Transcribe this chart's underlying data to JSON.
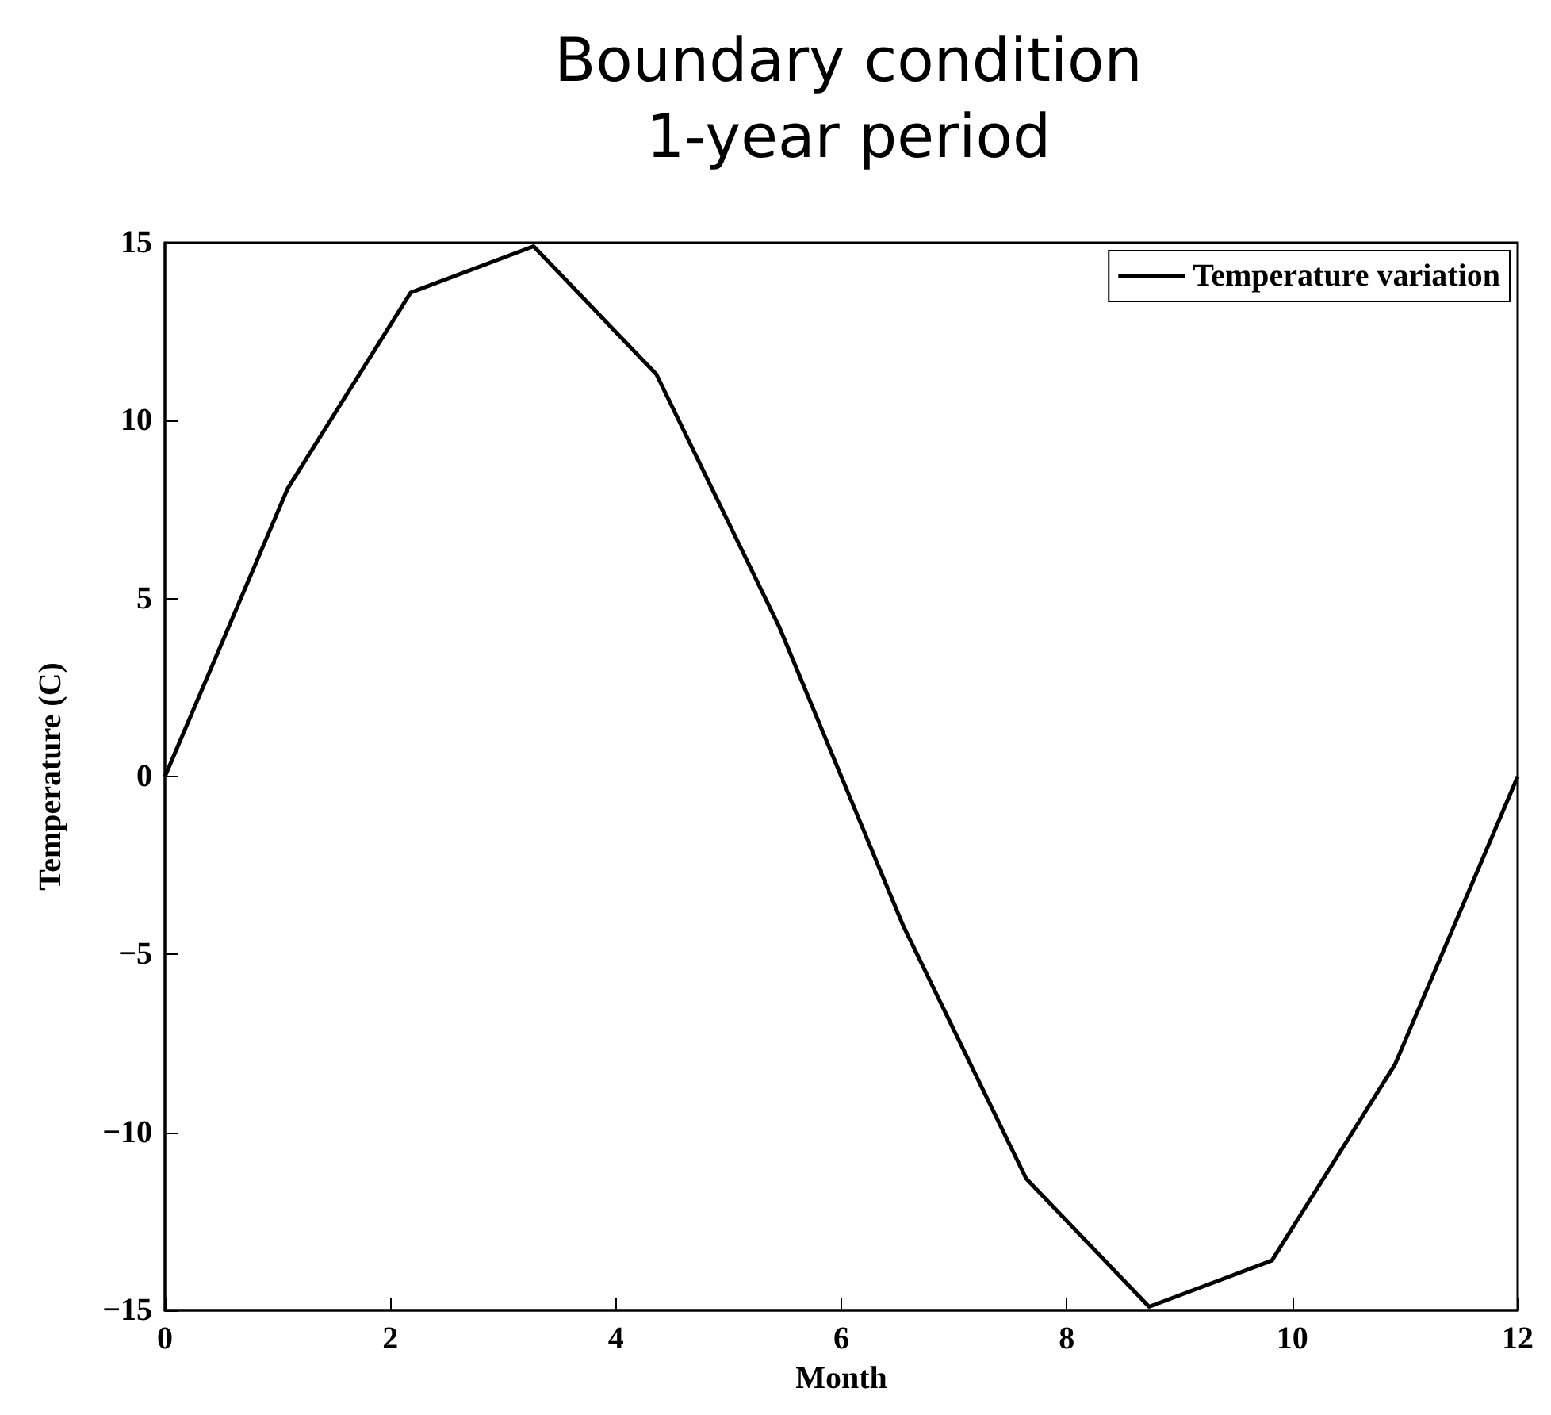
{
  "chart_data": {
    "type": "line",
    "title": "Boundary condition",
    "subtitle": "1-year period",
    "xlabel": "Month",
    "ylabel": "Temperature (C)",
    "x": [
      0,
      1.09,
      2.18,
      3.27,
      4.36,
      5.45,
      6.55,
      7.64,
      8.73,
      9.82,
      10.91,
      12
    ],
    "series": [
      {
        "name": "Temperature variation",
        "color": "#000000",
        "values": [
          0,
          8.1,
          13.6,
          14.9,
          11.3,
          4.2,
          -4.2,
          -11.3,
          -14.9,
          -13.6,
          -8.1,
          0
        ]
      }
    ],
    "xlim": [
      0,
      12
    ],
    "xticks": [
      0,
      2,
      4,
      6,
      8,
      10,
      12
    ],
    "ylim": [
      -15,
      15
    ],
    "yticks": [
      {
        "value": -15,
        "label": "−15"
      },
      {
        "value": -10,
        "label": "−10"
      },
      {
        "value": -5,
        "label": "−5"
      },
      0,
      5,
      10,
      15
    ],
    "grid": false,
    "legend": "top right",
    "marker": "none",
    "line_style": "solid"
  }
}
